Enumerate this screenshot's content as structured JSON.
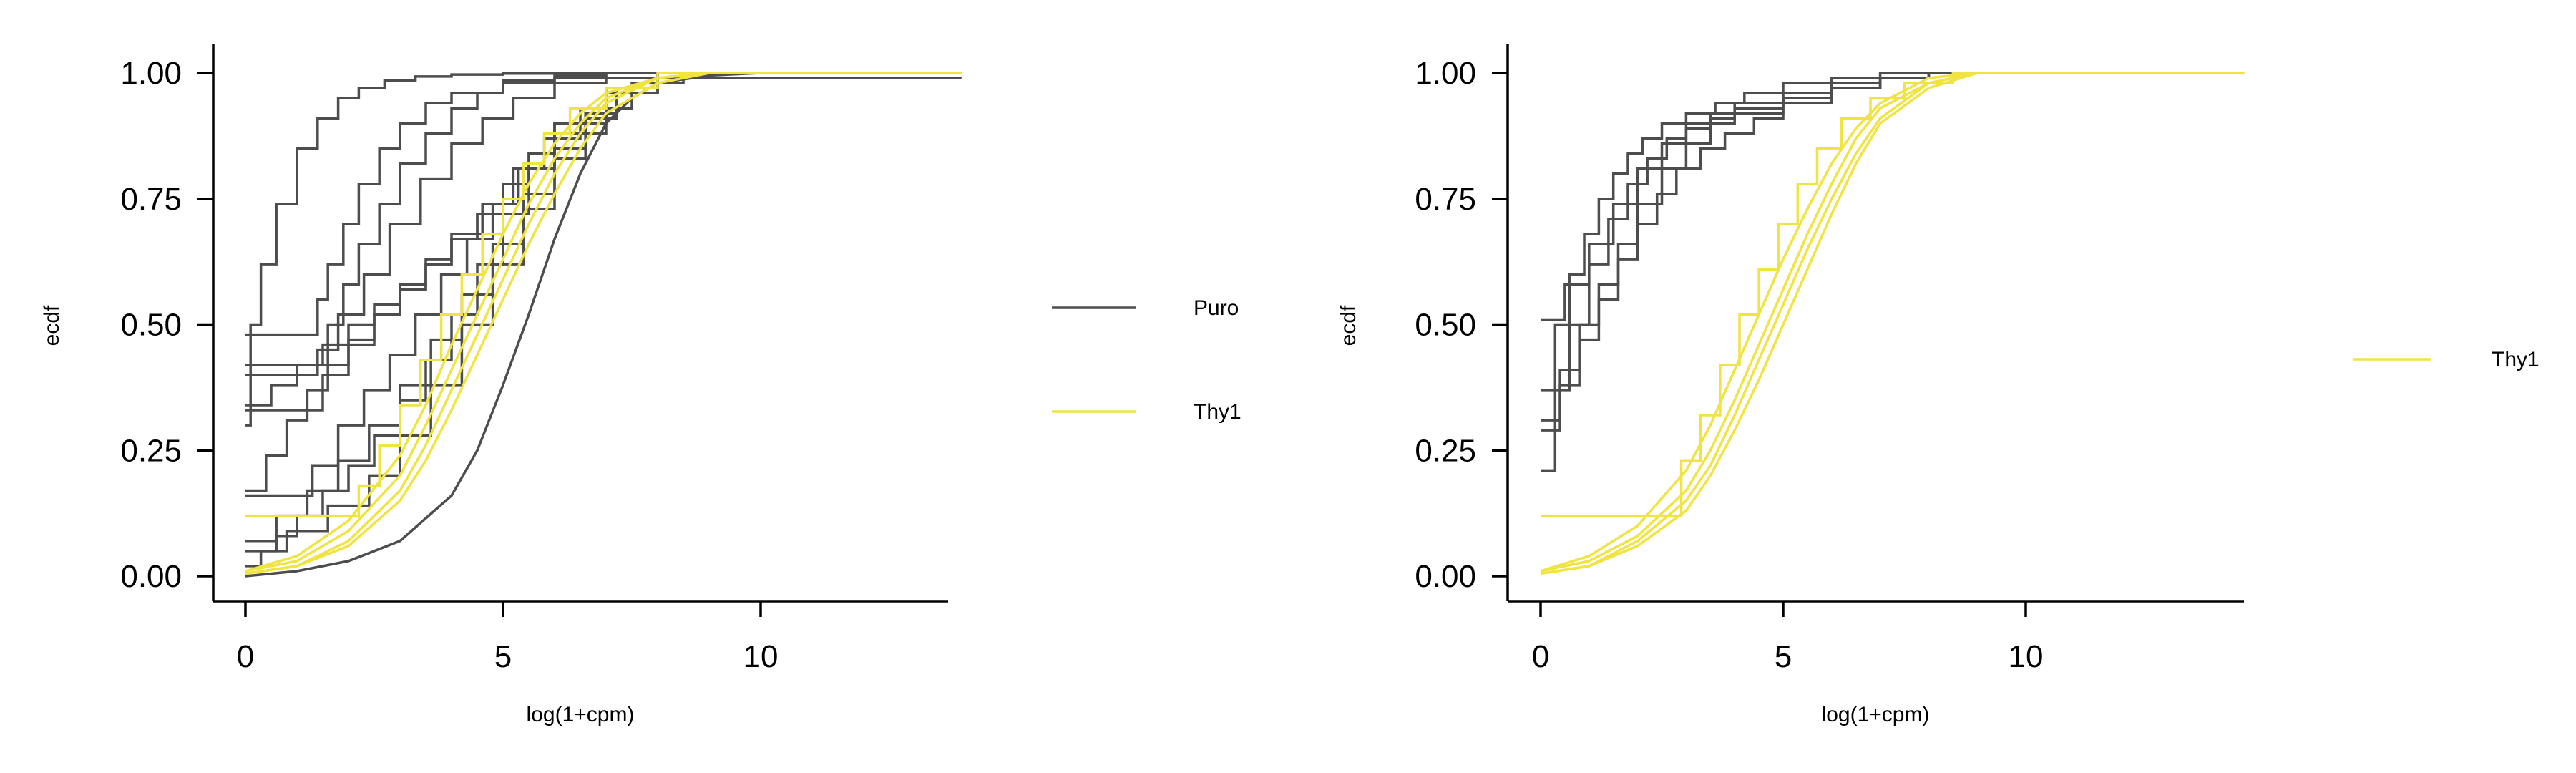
{
  "chart_data": [
    {
      "type": "line",
      "title": "",
      "xlabel": "log(1+cpm)",
      "ylabel": "ecdf",
      "xlim": [
        -0.7,
        13.9
      ],
      "ylim": [
        -0.05,
        1.05
      ],
      "xticks": [
        0,
        5,
        10
      ],
      "yticks": [
        0.0,
        0.25,
        0.5,
        0.75,
        1.0
      ],
      "xtick_labels": [
        "0",
        "5",
        "10"
      ],
      "ytick_labels": [
        "0.00",
        "0.25",
        "0.50",
        "0.75",
        "1.00"
      ],
      "grid": false,
      "legend_position": "right",
      "legend": [
        {
          "label": "Puro",
          "color": "#4d4d4d"
        },
        {
          "label": "Thy1",
          "color": "#f0e442"
        }
      ],
      "series": [
        {
          "name": "Puro",
          "color": "#4d4d4d",
          "step": true,
          "x": [
            0,
            0.1,
            0.3,
            0.6,
            1,
            1.4,
            1.8,
            2.2,
            2.7,
            3.3,
            4,
            5,
            6,
            7,
            8
          ],
          "y": [
            0.3,
            0.5,
            0.62,
            0.74,
            0.85,
            0.91,
            0.95,
            0.97,
            0.985,
            0.993,
            0.997,
            0.999,
            1,
            1,
            1
          ]
        },
        {
          "name": "Puro",
          "color": "#4d4d4d",
          "step": true,
          "x": [
            0,
            1.4,
            1.6,
            1.9,
            2.2,
            2.6,
            3,
            3.5,
            4,
            5,
            6,
            7,
            8
          ],
          "y": [
            0.48,
            0.55,
            0.62,
            0.7,
            0.78,
            0.85,
            0.9,
            0.94,
            0.96,
            0.985,
            0.995,
            1,
            1
          ]
        },
        {
          "name": "Puro",
          "color": "#4d4d4d",
          "step": true,
          "x": [
            0,
            1.6,
            1.9,
            2.2,
            2.6,
            3,
            3.5,
            4,
            4.5,
            5,
            6,
            7,
            8
          ],
          "y": [
            0.42,
            0.5,
            0.58,
            0.66,
            0.74,
            0.82,
            0.88,
            0.93,
            0.96,
            0.98,
            0.99,
            1,
            1
          ]
        },
        {
          "name": "Puro",
          "color": "#4d4d4d",
          "step": true,
          "x": [
            0,
            1.4,
            1.8,
            2.3,
            2.8,
            3.4,
            4,
            4.6,
            5.2,
            6,
            7,
            8
          ],
          "y": [
            0.4,
            0.45,
            0.52,
            0.6,
            0.7,
            0.79,
            0.86,
            0.91,
            0.95,
            0.98,
            0.99,
            1
          ]
        },
        {
          "name": "Puro",
          "color": "#4d4d4d",
          "step": true,
          "x": [
            0,
            0.5,
            1,
            1.5,
            2,
            2.5,
            3,
            3.5,
            4,
            4.6,
            5.2,
            6,
            7,
            8
          ],
          "y": [
            0.34,
            0.38,
            0.42,
            0.46,
            0.5,
            0.54,
            0.58,
            0.63,
            0.68,
            0.74,
            0.81,
            0.9,
            0.96,
            0.99
          ]
        },
        {
          "name": "Puro",
          "color": "#4d4d4d",
          "step": true,
          "x": [
            0,
            1.5,
            2,
            2.5,
            3,
            3.5,
            4,
            4.5,
            5,
            5.5,
            6,
            7,
            8
          ],
          "y": [
            0.33,
            0.4,
            0.46,
            0.52,
            0.57,
            0.62,
            0.67,
            0.72,
            0.78,
            0.84,
            0.9,
            0.97,
            1
          ]
        },
        {
          "name": "Puro",
          "color": "#4d4d4d",
          "step": true,
          "x": [
            0,
            0.4,
            0.8,
            1.2,
            1.6,
            2,
            2.5,
            3,
            3.5,
            4,
            4.5,
            5,
            5.5,
            6,
            7,
            8
          ],
          "y": [
            0.17,
            0.24,
            0.31,
            0.37,
            0.42,
            0.47,
            0.52,
            0.57,
            0.62,
            0.67,
            0.72,
            0.78,
            0.84,
            0.9,
            0.97,
            1
          ]
        },
        {
          "name": "Puro",
          "color": "#4d4d4d",
          "step": true,
          "x": [
            0,
            1.3,
            1.8,
            2.3,
            2.8,
            3.3,
            3.8,
            4.3,
            4.8,
            5.3,
            5.8,
            6.5,
            7.5,
            8.5
          ],
          "y": [
            0.16,
            0.22,
            0.3,
            0.37,
            0.44,
            0.52,
            0.6,
            0.67,
            0.74,
            0.81,
            0.87,
            0.93,
            0.98,
            1
          ]
        },
        {
          "name": "Puro",
          "color": "#4d4d4d",
          "step": true,
          "x": [
            0,
            0.6,
            1.2,
            1.8,
            2.4,
            3,
            3.6,
            4.2,
            4.8,
            5.4,
            6,
            6.6,
            7.2,
            8
          ],
          "y": [
            0.07,
            0.12,
            0.17,
            0.23,
            0.3,
            0.38,
            0.47,
            0.56,
            0.66,
            0.76,
            0.85,
            0.92,
            0.97,
            1
          ]
        },
        {
          "name": "Puro",
          "color": "#4d4d4d",
          "step": true,
          "x": [
            0,
            0.8,
            1.6,
            2.4,
            3,
            3.6,
            4.2,
            4.8,
            5.4,
            6,
            6.6,
            7.2,
            8
          ],
          "y": [
            0.05,
            0.09,
            0.14,
            0.2,
            0.28,
            0.38,
            0.5,
            0.62,
            0.73,
            0.83,
            0.91,
            0.96,
            1
          ]
        },
        {
          "name": "Puro",
          "color": "#4d4d4d",
          "step": true,
          "x": [
            0,
            0.3,
            0.6,
            1,
            1.5,
            2,
            2.5,
            3,
            3.5,
            4,
            4.5,
            5,
            5.5,
            6,
            7,
            8
          ],
          "y": [
            0.02,
            0.05,
            0.08,
            0.12,
            0.17,
            0.22,
            0.28,
            0.35,
            0.43,
            0.52,
            0.62,
            0.72,
            0.81,
            0.88,
            0.96,
            1
          ]
        },
        {
          "name": "Puro",
          "color": "#4d4d4d",
          "step": false,
          "x": [
            0,
            1,
            2,
            3,
            4,
            4.5,
            5,
            5.5,
            6,
            6.5,
            7,
            7.5,
            8,
            9,
            10
          ],
          "y": [
            0.0,
            0.01,
            0.03,
            0.07,
            0.16,
            0.25,
            0.38,
            0.52,
            0.67,
            0.8,
            0.9,
            0.95,
            0.98,
            0.995,
            1
          ]
        },
        {
          "name": "Thy1",
          "color": "#f0e442",
          "step": false,
          "x": [
            0,
            1,
            2,
            3,
            3.5,
            4,
            4.5,
            5,
            5.5,
            6,
            6.5,
            7,
            8,
            9
          ],
          "y": [
            0.01,
            0.03,
            0.09,
            0.2,
            0.3,
            0.41,
            0.52,
            0.63,
            0.74,
            0.83,
            0.9,
            0.95,
            0.99,
            1
          ]
        },
        {
          "name": "Thy1",
          "color": "#f0e442",
          "step": false,
          "x": [
            0,
            1,
            2,
            3,
            3.5,
            4,
            4.5,
            5,
            5.5,
            6,
            6.5,
            7,
            8,
            9
          ],
          "y": [
            0.01,
            0.04,
            0.11,
            0.24,
            0.34,
            0.46,
            0.57,
            0.68,
            0.78,
            0.86,
            0.92,
            0.96,
            0.99,
            1
          ]
        },
        {
          "name": "Thy1",
          "color": "#f0e442",
          "step": false,
          "x": [
            0,
            1,
            2,
            3,
            3.5,
            4,
            4.5,
            5,
            5.5,
            6,
            6.5,
            7,
            8,
            9
          ],
          "y": [
            0.005,
            0.02,
            0.07,
            0.17,
            0.26,
            0.37,
            0.48,
            0.59,
            0.7,
            0.8,
            0.88,
            0.94,
            0.99,
            1
          ]
        },
        {
          "name": "Thy1",
          "color": "#f0e442",
          "step": false,
          "x": [
            0,
            1,
            2,
            3,
            3.5,
            4,
            4.5,
            5,
            5.5,
            6,
            6.5,
            7,
            8,
            9
          ],
          "y": [
            0.005,
            0.02,
            0.06,
            0.15,
            0.23,
            0.33,
            0.44,
            0.55,
            0.66,
            0.76,
            0.85,
            0.92,
            0.98,
            1
          ]
        },
        {
          "name": "Thy1",
          "color": "#f0e442",
          "step": true,
          "x": [
            0,
            2.2,
            2.6,
            3,
            3.4,
            3.8,
            4.2,
            4.6,
            5,
            5.4,
            5.8,
            6.3,
            7,
            8
          ],
          "y": [
            0.12,
            0.18,
            0.26,
            0.34,
            0.43,
            0.52,
            0.6,
            0.68,
            0.75,
            0.82,
            0.88,
            0.93,
            0.97,
            1
          ]
        }
      ]
    },
    {
      "type": "line",
      "title": "",
      "xlabel": "log(1+cpm)",
      "ylabel": "ecdf",
      "xlim": [
        -0.7,
        14.5
      ],
      "ylim": [
        -0.05,
        1.05
      ],
      "xticks": [
        0,
        5,
        10
      ],
      "yticks": [
        0.0,
        0.25,
        0.5,
        0.75,
        1.0
      ],
      "xtick_labels": [
        "0",
        "5",
        "10"
      ],
      "ytick_labels": [
        "0.00",
        "0.25",
        "0.50",
        "0.75",
        "1.00"
      ],
      "grid": false,
      "legend_position": "right",
      "legend": [
        {
          "label": "Thy1",
          "color": "#f0e442"
        }
      ],
      "series": [
        {
          "color": "#4d4d4d",
          "step": true,
          "x": [
            0,
            0.3,
            0.6,
            0.9,
            1.2,
            1.5,
            1.8,
            2.1,
            2.5,
            3,
            3.6,
            4.2,
            5,
            6,
            7,
            8
          ],
          "y": [
            0.37,
            0.5,
            0.6,
            0.68,
            0.75,
            0.8,
            0.84,
            0.87,
            0.9,
            0.92,
            0.94,
            0.96,
            0.98,
            0.99,
            1,
            1
          ]
        },
        {
          "color": "#4d4d4d",
          "step": true,
          "x": [
            0,
            0.3,
            0.6,
            1,
            1.4,
            1.8,
            2.2,
            2.6,
            3,
            3.5,
            4,
            5,
            6,
            7,
            8
          ],
          "y": [
            0.21,
            0.37,
            0.5,
            0.62,
            0.71,
            0.78,
            0.83,
            0.87,
            0.9,
            0.92,
            0.94,
            0.96,
            0.98,
            0.99,
            1
          ]
        },
        {
          "color": "#4d4d4d",
          "step": true,
          "x": [
            0,
            0.5,
            1,
            1.5,
            2,
            2.5,
            3,
            3.5,
            4,
            5,
            6,
            7,
            8,
            9
          ],
          "y": [
            0.51,
            0.58,
            0.66,
            0.74,
            0.81,
            0.86,
            0.89,
            0.91,
            0.93,
            0.95,
            0.97,
            0.99,
            1,
            1
          ]
        },
        {
          "color": "#4d4d4d",
          "step": true,
          "x": [
            0,
            0.4,
            0.8,
            1.2,
            1.6,
            2,
            2.4,
            2.8,
            3.3,
            3.8,
            4.4,
            5,
            6,
            7,
            8
          ],
          "y": [
            0.29,
            0.38,
            0.47,
            0.55,
            0.63,
            0.7,
            0.76,
            0.81,
            0.85,
            0.88,
            0.91,
            0.94,
            0.97,
            0.99,
            1
          ]
        },
        {
          "color": "#4d4d4d",
          "step": true,
          "x": [
            0,
            0.4,
            0.8,
            1.2,
            1.6,
            2,
            2.5,
            3,
            3.5,
            4,
            5,
            6,
            7,
            8
          ],
          "y": [
            0.31,
            0.41,
            0.5,
            0.58,
            0.66,
            0.74,
            0.81,
            0.86,
            0.9,
            0.92,
            0.95,
            0.97,
            0.99,
            1
          ]
        },
        {
          "name": "Thy1",
          "color": "#f0e442",
          "step": false,
          "x": [
            0,
            1,
            2,
            3,
            3.5,
            4,
            4.5,
            5,
            5.5,
            6,
            6.5,
            7,
            8,
            9
          ],
          "y": [
            0.01,
            0.03,
            0.08,
            0.17,
            0.25,
            0.35,
            0.46,
            0.57,
            0.68,
            0.78,
            0.87,
            0.93,
            0.98,
            1
          ]
        },
        {
          "name": "Thy1",
          "color": "#f0e442",
          "step": false,
          "x": [
            0,
            1,
            2,
            3,
            3.5,
            4,
            4.5,
            5,
            5.5,
            6,
            6.5,
            7,
            8,
            9
          ],
          "y": [
            0.01,
            0.04,
            0.1,
            0.21,
            0.3,
            0.41,
            0.52,
            0.63,
            0.73,
            0.82,
            0.89,
            0.94,
            0.99,
            1
          ]
        },
        {
          "name": "Thy1",
          "color": "#f0e442",
          "step": false,
          "x": [
            0,
            1,
            2,
            3,
            3.5,
            4,
            4.5,
            5,
            5.5,
            6,
            6.5,
            7,
            8,
            9
          ],
          "y": [
            0.005,
            0.02,
            0.07,
            0.15,
            0.22,
            0.32,
            0.43,
            0.54,
            0.65,
            0.75,
            0.84,
            0.91,
            0.98,
            1
          ]
        },
        {
          "name": "Thy1",
          "color": "#f0e442",
          "step": false,
          "x": [
            0,
            1,
            2,
            3,
            3.5,
            4,
            4.5,
            5,
            5.5,
            6,
            6.5,
            7,
            8,
            9
          ],
          "y": [
            0.005,
            0.02,
            0.06,
            0.13,
            0.2,
            0.29,
            0.39,
            0.5,
            0.61,
            0.72,
            0.82,
            0.9,
            0.97,
            1
          ]
        },
        {
          "name": "Thy1",
          "color": "#f0e442",
          "step": true,
          "x": [
            0,
            2.9,
            3.3,
            3.7,
            4.1,
            4.5,
            4.9,
            5.3,
            5.7,
            6.2,
            6.8,
            7.5,
            8.5
          ],
          "y": [
            0.12,
            0.23,
            0.32,
            0.42,
            0.52,
            0.61,
            0.7,
            0.78,
            0.85,
            0.91,
            0.95,
            0.98,
            1
          ]
        }
      ]
    }
  ]
}
